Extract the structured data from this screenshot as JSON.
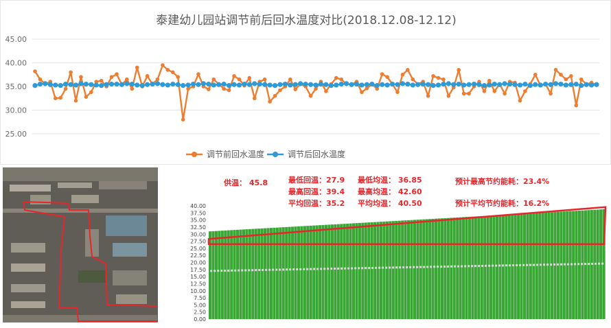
{
  "chart_data": [
    {
      "type": "line",
      "title": "泰建幼儿园站调节前后回水温度对比(2018.12.08-12.12)",
      "ylim": [
        25,
        45
      ],
      "yticks": [
        "25.00",
        "30.00",
        "35.00",
        "40.00",
        "45.00"
      ],
      "legend_position": "bottom",
      "series": [
        {
          "name": "调节前回水温度",
          "color": "#ed7d31",
          "values": [
            38.2,
            36.5,
            35.5,
            36.0,
            32.5,
            32.6,
            34.5,
            38.0,
            32.0,
            37.0,
            32.8,
            33.8,
            36.0,
            36.2,
            35.0,
            37.0,
            37.6,
            35.4,
            36.5,
            34.5,
            39.0,
            35.0,
            37.2,
            35.5,
            36.5,
            39.5,
            38.5,
            38.0,
            37.0,
            28.0,
            34.5,
            35.0,
            37.6,
            35.0,
            34.4,
            36.5,
            35.5,
            34.5,
            34.2,
            37.2,
            36.5,
            35.2,
            36.8,
            32.5,
            36.0,
            36.5,
            31.8,
            33.0,
            34.2,
            35.0,
            36.5,
            34.4,
            35.5,
            35.0,
            33.0,
            34.5,
            36.0,
            34.0,
            35.5,
            36.8,
            36.5,
            35.5,
            35.4,
            36.0,
            33.8,
            34.6,
            35.5,
            34.5,
            37.6,
            37.0,
            35.5,
            33.8,
            37.5,
            38.5,
            36.5,
            35.5,
            36.0,
            33.0,
            37.2,
            36.8,
            36.5,
            33.0,
            34.8,
            38.5,
            33.5,
            33.5,
            35.0,
            36.0,
            34.0,
            36.2,
            34.0,
            35.5,
            33.5,
            36.0,
            35.8,
            32.0,
            34.0,
            35.5,
            37.5,
            35.2,
            35.5,
            33.5,
            38.5,
            37.5,
            36.5,
            37.2,
            31.0,
            36.5,
            35.5,
            35.8,
            35.3
          ]
        },
        {
          "name": "调节后回水温度",
          "color": "#2e9bd6",
          "values": [
            35.2,
            35.5,
            35.6,
            35.4,
            35.3,
            35.2,
            35.5,
            35.4,
            35.3,
            35.6,
            35.5,
            35.4,
            35.3,
            35.2,
            35.4,
            35.5,
            35.5,
            35.4,
            35.6,
            35.5,
            35.3,
            35.2,
            35.4,
            35.5,
            35.6,
            35.4,
            35.3,
            35.5,
            35.4,
            35.2,
            35.3,
            35.5,
            35.4,
            35.6,
            35.5,
            35.3,
            35.4,
            35.5,
            35.2,
            35.4,
            35.3,
            35.5,
            35.4,
            35.6,
            35.5,
            35.4,
            35.3,
            35.2,
            35.4,
            35.5,
            35.3,
            35.4,
            35.6,
            35.5,
            35.4,
            35.3,
            35.5,
            35.4,
            35.2,
            35.3,
            35.5,
            35.6,
            35.4,
            35.5,
            35.3,
            35.4,
            35.5,
            35.2,
            35.4,
            35.3,
            35.5,
            35.4,
            35.6,
            35.5,
            35.3,
            35.4,
            35.5,
            35.4,
            35.2,
            35.3,
            35.5,
            35.6,
            35.4,
            35.5,
            35.3,
            35.4,
            35.5,
            35.4,
            35.2,
            35.3,
            35.5,
            35.4,
            35.6,
            35.5,
            35.4,
            35.3,
            35.5,
            35.2,
            35.4,
            35.3,
            35.5,
            35.4,
            35.6,
            35.5,
            35.3,
            35.4,
            35.5,
            35.2,
            35.4,
            35.3,
            35.4
          ]
        }
      ]
    },
    {
      "type": "bar",
      "ylim": [
        0,
        40
      ],
      "yticks": [
        "0.00",
        "2.50",
        "5.00",
        "7.50",
        "10.00",
        "12.50",
        "15.00",
        "17.50",
        "20.00",
        "22.50",
        "25.00",
        "27.50",
        "30.00",
        "32.50",
        "35.00",
        "37.50",
        "40.00"
      ],
      "bar_count": 130,
      "bar_start": 31.0,
      "bar_end": 38.8,
      "bar_color": "#3aa635",
      "line_start": 17.0,
      "line_end": 19.6,
      "line_color": "#d9d9d9",
      "highlight_color": "#e8252b"
    }
  ],
  "stats": {
    "supply_temp": "供温： 45.8",
    "min_return": "最低回温：27.9",
    "max_return": "最高回温：39.4",
    "avg_return": "平均回温：35.2",
    "min_avg": "最低均温： 36.85",
    "max_avg": "最高均温： 42.60",
    "avg_avg": "平均均温： 40.50",
    "max_saving": "预计最高节约能耗：23.4%",
    "avg_saving": "预计平均节约能耗：16.2%"
  },
  "map": {
    "boundary_color": "#e8252b"
  }
}
